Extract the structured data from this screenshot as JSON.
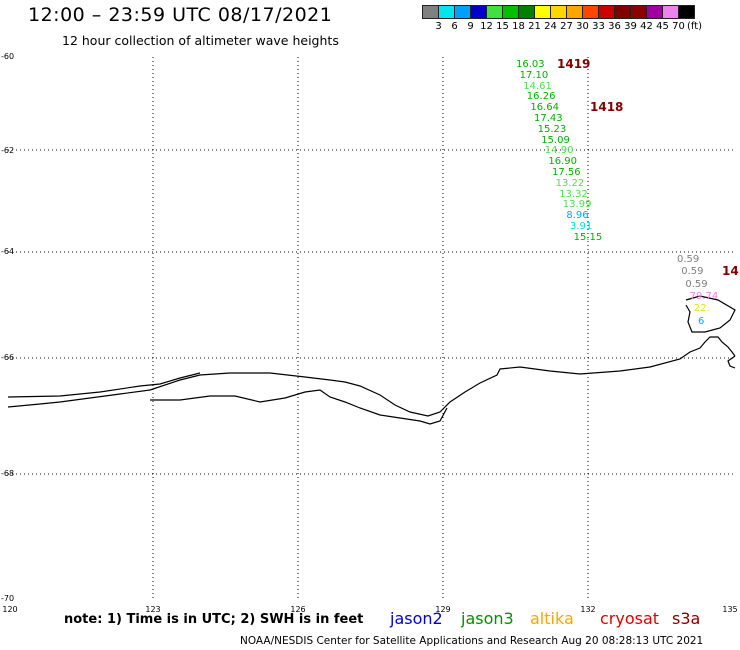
{
  "header": {
    "title": "12:00 – 23:59 UTC 08/17/2021",
    "subtitle": "12 hour collection of altimeter wave heights"
  },
  "color_scale": {
    "labels": [
      "3",
      "6",
      "9",
      "12",
      "15",
      "18",
      "21",
      "24",
      "27",
      "30",
      "33",
      "36",
      "39",
      "42",
      "45",
      "70",
      "(ft)"
    ],
    "colors": [
      "#808080",
      "#00e5ee",
      "#00a0ff",
      "#0000cd",
      "#40e040",
      "#00c000",
      "#008000",
      "#ffff00",
      "#ffd700",
      "#ffa500",
      "#ff4500",
      "#cc0000",
      "#800000",
      "#8b0000",
      "#a000a0",
      "#ee82ee",
      "#000000"
    ]
  },
  "map": {
    "lat_labels": [
      "-60",
      "-62",
      "-64",
      "-66",
      "-68",
      "-70"
    ],
    "lon_labels": [
      "120",
      "123",
      "126",
      "129",
      "132",
      "135"
    ]
  },
  "tracks": [
    {
      "label": "1419",
      "values": [
        {
          "v": "16.03",
          "c": "#00b000"
        },
        {
          "v": "17.10",
          "c": "#00b000"
        },
        {
          "v": "14.61",
          "c": "#50e050"
        },
        {
          "v": "16.26",
          "c": "#00b000"
        },
        {
          "v": "16.64",
          "c": "#00b000"
        },
        {
          "v": "17.43",
          "c": "#00b000"
        },
        {
          "v": "15.23",
          "c": "#00b000"
        },
        {
          "v": "15.09",
          "c": "#00b000"
        },
        {
          "v": "14.90",
          "c": "#50e050"
        },
        {
          "v": "16.90",
          "c": "#00b000"
        },
        {
          "v": "17.56",
          "c": "#00b000"
        },
        {
          "v": "13.22",
          "c": "#50e050"
        },
        {
          "v": "13.32",
          "c": "#50e050"
        },
        {
          "v": "13.99",
          "c": "#50e050"
        },
        {
          "v": "8.96",
          "c": "#00aaff"
        },
        {
          "v": "3.91",
          "c": "#00dddd"
        },
        {
          "v": "15.15",
          "c": "#00b000"
        }
      ]
    },
    {
      "label": "1418"
    },
    {
      "label": "14",
      "values": [
        {
          "v": "0.59",
          "c": "#808080"
        },
        {
          "v": "0.59",
          "c": "#808080"
        },
        {
          "v": "0.59",
          "c": "#808080"
        },
        {
          "v": "79.74",
          "c": "#ee82ee"
        },
        {
          "v": "22.",
          "c": "#e6e600"
        },
        {
          "v": "6",
          "c": "#00aaff"
        }
      ]
    }
  ],
  "note": "note: 1) Time is in UTC; 2) SWH is in feet",
  "satellites": [
    {
      "name": "jason2",
      "color": "#0000cd"
    },
    {
      "name": "jason3",
      "color": "#009000"
    },
    {
      "name": "altika",
      "color": "#ffa500"
    },
    {
      "name": "cryosat",
      "color": "#e00000"
    },
    {
      "name": "s3a",
      "color": "#800000"
    }
  ],
  "footer": "NOAA/NESDIS Center for Satellite Applications and Research     Aug 20 08:28:13 UTC 2021"
}
